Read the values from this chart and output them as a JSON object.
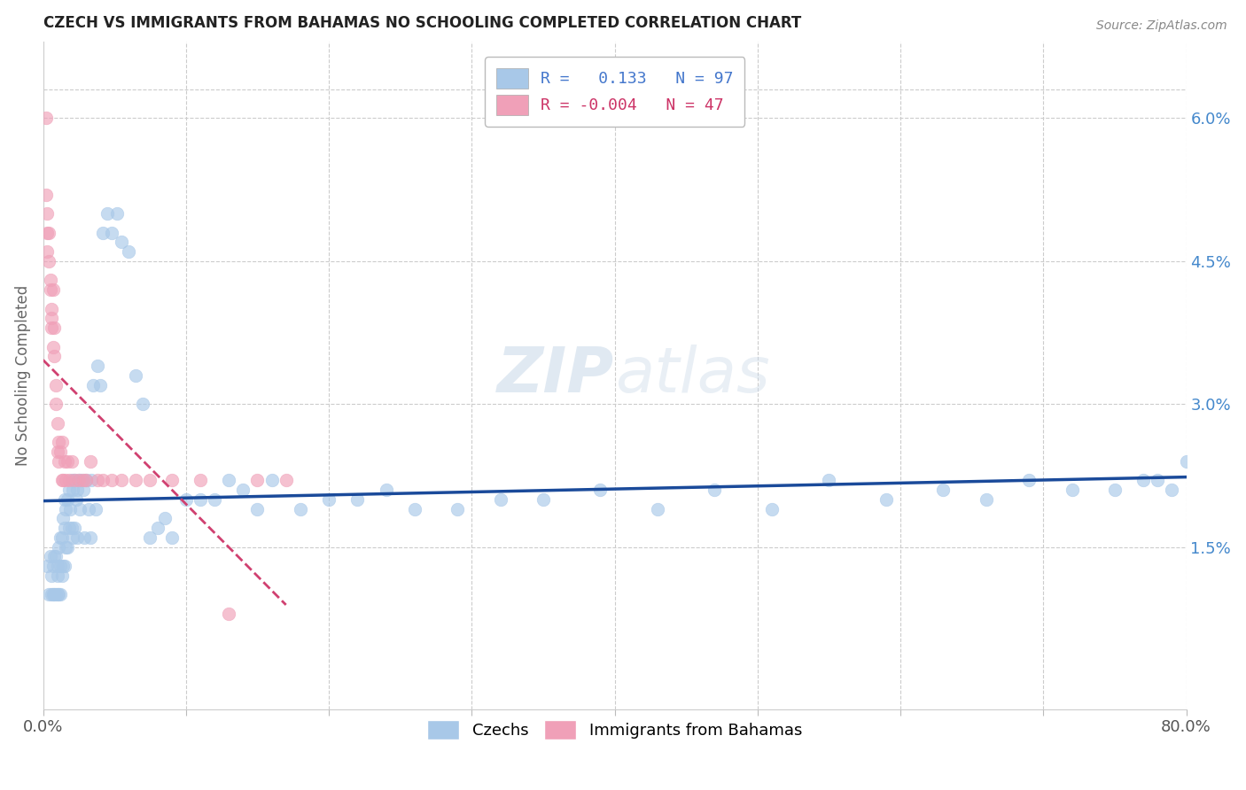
{
  "title": "CZECH VS IMMIGRANTS FROM BAHAMAS NO SCHOOLING COMPLETED CORRELATION CHART",
  "source": "Source: ZipAtlas.com",
  "ylabel": "No Schooling Completed",
  "right_yticks": [
    "6.0%",
    "4.5%",
    "3.0%",
    "1.5%"
  ],
  "right_ytick_vals": [
    0.06,
    0.045,
    0.03,
    0.015
  ],
  "legend_czechs_R": "0.133",
  "legend_czechs_N": "97",
  "legend_bahamas_R": "-0.004",
  "legend_bahamas_N": "47",
  "czech_color": "#a8c8e8",
  "bahamas_color": "#f0a0b8",
  "czech_line_color": "#1a4a9a",
  "bahamas_line_color": "#d04070",
  "xlim": [
    0.0,
    0.8
  ],
  "ylim": [
    -0.002,
    0.068
  ],
  "czechs_x": [
    0.003,
    0.004,
    0.005,
    0.006,
    0.006,
    0.007,
    0.007,
    0.008,
    0.008,
    0.009,
    0.009,
    0.01,
    0.01,
    0.01,
    0.011,
    0.011,
    0.012,
    0.012,
    0.012,
    0.013,
    0.013,
    0.014,
    0.014,
    0.015,
    0.015,
    0.015,
    0.016,
    0.016,
    0.017,
    0.017,
    0.018,
    0.018,
    0.019,
    0.02,
    0.02,
    0.021,
    0.021,
    0.022,
    0.022,
    0.023,
    0.024,
    0.024,
    0.025,
    0.026,
    0.027,
    0.028,
    0.029,
    0.03,
    0.032,
    0.033,
    0.034,
    0.035,
    0.037,
    0.038,
    0.04,
    0.042,
    0.045,
    0.048,
    0.052,
    0.055,
    0.06,
    0.065,
    0.07,
    0.075,
    0.08,
    0.085,
    0.09,
    0.1,
    0.11,
    0.12,
    0.13,
    0.14,
    0.15,
    0.16,
    0.18,
    0.2,
    0.22,
    0.24,
    0.26,
    0.29,
    0.32,
    0.35,
    0.39,
    0.43,
    0.47,
    0.51,
    0.55,
    0.59,
    0.63,
    0.66,
    0.69,
    0.72,
    0.75,
    0.77,
    0.78,
    0.79,
    0.8
  ],
  "czechs_y": [
    0.013,
    0.01,
    0.014,
    0.01,
    0.012,
    0.013,
    0.01,
    0.014,
    0.01,
    0.014,
    0.01,
    0.013,
    0.012,
    0.01,
    0.015,
    0.01,
    0.016,
    0.013,
    0.01,
    0.016,
    0.012,
    0.018,
    0.013,
    0.02,
    0.017,
    0.013,
    0.019,
    0.015,
    0.02,
    0.015,
    0.021,
    0.017,
    0.019,
    0.022,
    0.017,
    0.021,
    0.016,
    0.022,
    0.017,
    0.02,
    0.021,
    0.016,
    0.022,
    0.019,
    0.022,
    0.021,
    0.016,
    0.022,
    0.019,
    0.016,
    0.022,
    0.032,
    0.019,
    0.034,
    0.032,
    0.048,
    0.05,
    0.048,
    0.05,
    0.047,
    0.046,
    0.033,
    0.03,
    0.016,
    0.017,
    0.018,
    0.016,
    0.02,
    0.02,
    0.02,
    0.022,
    0.021,
    0.019,
    0.022,
    0.019,
    0.02,
    0.02,
    0.021,
    0.019,
    0.019,
    0.02,
    0.02,
    0.021,
    0.019,
    0.021,
    0.019,
    0.022,
    0.02,
    0.021,
    0.02,
    0.022,
    0.021,
    0.021,
    0.022,
    0.022,
    0.021,
    0.024
  ],
  "bahamas_x": [
    0.002,
    0.002,
    0.003,
    0.003,
    0.003,
    0.004,
    0.004,
    0.005,
    0.005,
    0.006,
    0.006,
    0.006,
    0.007,
    0.007,
    0.008,
    0.008,
    0.009,
    0.009,
    0.01,
    0.01,
    0.011,
    0.011,
    0.012,
    0.013,
    0.013,
    0.014,
    0.015,
    0.016,
    0.017,
    0.018,
    0.02,
    0.022,
    0.025,
    0.028,
    0.03,
    0.033,
    0.038,
    0.042,
    0.048,
    0.055,
    0.065,
    0.075,
    0.09,
    0.11,
    0.13,
    0.15,
    0.17
  ],
  "bahamas_y": [
    0.06,
    0.052,
    0.05,
    0.048,
    0.046,
    0.048,
    0.045,
    0.043,
    0.042,
    0.04,
    0.039,
    0.038,
    0.042,
    0.036,
    0.035,
    0.038,
    0.032,
    0.03,
    0.028,
    0.025,
    0.026,
    0.024,
    0.025,
    0.026,
    0.022,
    0.022,
    0.024,
    0.022,
    0.024,
    0.022,
    0.024,
    0.022,
    0.022,
    0.022,
    0.022,
    0.024,
    0.022,
    0.022,
    0.022,
    0.022,
    0.022,
    0.022,
    0.022,
    0.022,
    0.008,
    0.022,
    0.022
  ]
}
